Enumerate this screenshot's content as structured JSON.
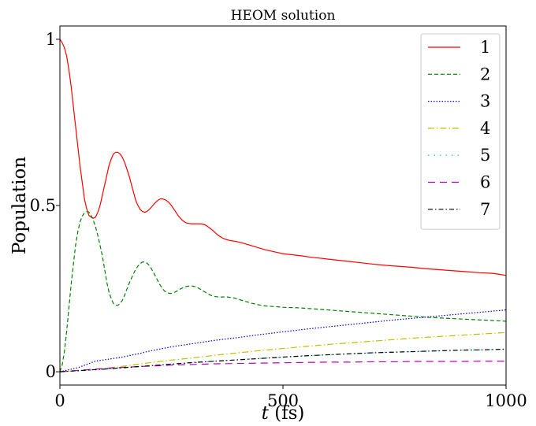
{
  "chart_data": {
    "type": "line",
    "title": "HEOM solution",
    "xlabel_italic": "t",
    "xlabel_rest": " (fs)",
    "ylabel": "Population",
    "xlim": [
      0,
      1000
    ],
    "ylim": [
      -0.04,
      1.04
    ],
    "xticks": [
      0,
      500,
      1000
    ],
    "xtick_labels": [
      "0",
      "500",
      "1000"
    ],
    "yticks": [
      0,
      0.5,
      1
    ],
    "ytick_labels": [
      "0",
      "0.5",
      "1"
    ],
    "grid": false,
    "legend_position": "top-right",
    "series": [
      {
        "name": "1",
        "color": "#ff0000",
        "dash": "",
        "x": [
          0,
          5,
          10,
          15,
          20,
          25,
          30,
          35,
          40,
          45,
          50,
          55,
          60,
          65,
          70,
          75,
          80,
          85,
          90,
          95,
          100,
          105,
          110,
          115,
          120,
          125,
          130,
          135,
          140,
          145,
          150,
          155,
          160,
          165,
          170,
          175,
          180,
          185,
          190,
          195,
          200,
          205,
          210,
          215,
          220,
          225,
          230,
          235,
          240,
          245,
          250,
          255,
          260,
          265,
          270,
          275,
          280,
          285,
          290,
          295,
          300,
          305,
          310,
          315,
          320,
          325,
          330,
          335,
          340,
          345,
          350,
          355,
          360,
          365,
          370,
          375,
          380,
          385,
          390,
          395,
          400,
          410,
          420,
          430,
          440,
          450,
          460,
          470,
          480,
          490,
          500,
          520,
          540,
          560,
          580,
          600,
          620,
          640,
          660,
          680,
          700,
          730,
          760,
          790,
          820,
          850,
          880,
          910,
          940,
          970,
          1000
        ],
        "y": [
          1.0,
          0.99,
          0.975,
          0.95,
          0.91,
          0.86,
          0.8,
          0.74,
          0.68,
          0.62,
          0.57,
          0.52,
          0.49,
          0.47,
          0.465,
          0.462,
          0.465,
          0.48,
          0.5,
          0.53,
          0.56,
          0.59,
          0.62,
          0.64,
          0.655,
          0.66,
          0.66,
          0.655,
          0.645,
          0.63,
          0.61,
          0.59,
          0.565,
          0.54,
          0.515,
          0.5,
          0.488,
          0.482,
          0.48,
          0.482,
          0.488,
          0.495,
          0.503,
          0.51,
          0.516,
          0.52,
          0.52,
          0.518,
          0.514,
          0.508,
          0.5,
          0.49,
          0.48,
          0.47,
          0.462,
          0.455,
          0.45,
          0.447,
          0.446,
          0.445,
          0.445,
          0.445,
          0.445,
          0.445,
          0.444,
          0.442,
          0.438,
          0.433,
          0.428,
          0.422,
          0.416,
          0.41,
          0.406,
          0.402,
          0.399,
          0.397,
          0.395,
          0.394,
          0.393,
          0.392,
          0.39,
          0.387,
          0.383,
          0.379,
          0.375,
          0.371,
          0.367,
          0.364,
          0.361,
          0.358,
          0.355,
          0.352,
          0.349,
          0.345,
          0.342,
          0.339,
          0.336,
          0.333,
          0.33,
          0.327,
          0.324,
          0.32,
          0.317,
          0.314,
          0.31,
          0.307,
          0.304,
          0.301,
          0.298,
          0.296,
          0.29
        ]
      },
      {
        "name": "2",
        "color": "#008000",
        "dash": "5,3",
        "x": [
          0,
          5,
          10,
          15,
          20,
          25,
          30,
          35,
          40,
          45,
          50,
          55,
          60,
          65,
          70,
          75,
          80,
          85,
          90,
          95,
          100,
          105,
          110,
          115,
          120,
          125,
          130,
          135,
          140,
          145,
          150,
          155,
          160,
          165,
          170,
          175,
          180,
          185,
          190,
          195,
          200,
          205,
          210,
          215,
          220,
          225,
          230,
          235,
          240,
          245,
          250,
          255,
          260,
          265,
          270,
          275,
          280,
          285,
          290,
          295,
          300,
          305,
          310,
          315,
          320,
          325,
          330,
          335,
          340,
          345,
          350,
          355,
          360,
          365,
          370,
          375,
          380,
          385,
          390,
          395,
          400,
          410,
          420,
          430,
          440,
          450,
          460,
          470,
          480,
          490,
          500,
          520,
          540,
          560,
          580,
          600,
          620,
          640,
          660,
          680,
          700,
          730,
          760,
          790,
          820,
          850,
          880,
          910,
          940,
          970,
          1000
        ],
        "y": [
          0.0,
          0.02,
          0.06,
          0.12,
          0.19,
          0.26,
          0.32,
          0.38,
          0.42,
          0.45,
          0.468,
          0.478,
          0.482,
          0.48,
          0.47,
          0.455,
          0.435,
          0.41,
          0.38,
          0.35,
          0.31,
          0.27,
          0.24,
          0.22,
          0.205,
          0.2,
          0.2,
          0.205,
          0.215,
          0.23,
          0.248,
          0.265,
          0.28,
          0.295,
          0.308,
          0.318,
          0.325,
          0.33,
          0.33,
          0.327,
          0.32,
          0.31,
          0.298,
          0.285,
          0.272,
          0.26,
          0.25,
          0.242,
          0.238,
          0.236,
          0.236,
          0.238,
          0.241,
          0.245,
          0.249,
          0.252,
          0.255,
          0.257,
          0.258,
          0.258,
          0.257,
          0.255,
          0.252,
          0.248,
          0.244,
          0.24,
          0.236,
          0.232,
          0.229,
          0.227,
          0.226,
          0.225,
          0.225,
          0.225,
          0.225,
          0.225,
          0.224,
          0.223,
          0.222,
          0.22,
          0.218,
          0.214,
          0.21,
          0.206,
          0.203,
          0.2,
          0.198,
          0.197,
          0.196,
          0.195,
          0.194,
          0.193,
          0.192,
          0.19,
          0.188,
          0.186,
          0.184,
          0.182,
          0.18,
          0.178,
          0.176,
          0.173,
          0.17,
          0.167,
          0.164,
          0.162,
          0.16,
          0.158,
          0.156,
          0.154,
          0.152
        ]
      },
      {
        "name": "3",
        "color": "#0000cc",
        "dash": "1.5,2",
        "x": [
          0,
          20,
          40,
          60,
          80,
          100,
          120,
          140,
          160,
          180,
          200,
          250,
          300,
          350,
          400,
          450,
          500,
          550,
          600,
          650,
          700,
          750,
          800,
          850,
          900,
          950,
          1000
        ],
        "y": [
          0.0,
          0.006,
          0.012,
          0.022,
          0.032,
          0.036,
          0.04,
          0.044,
          0.05,
          0.055,
          0.062,
          0.075,
          0.085,
          0.095,
          0.103,
          0.112,
          0.12,
          0.128,
          0.135,
          0.142,
          0.149,
          0.156,
          0.162,
          0.168,
          0.174,
          0.18,
          0.186
        ]
      },
      {
        "name": "4",
        "color": "#bfbf00",
        "dash": "8,3,1.5,3",
        "x": [
          0,
          50,
          100,
          150,
          200,
          250,
          300,
          350,
          400,
          450,
          500,
          550,
          600,
          650,
          700,
          750,
          800,
          850,
          900,
          950,
          1000
        ],
        "y": [
          0.0,
          0.004,
          0.01,
          0.018,
          0.027,
          0.035,
          0.042,
          0.05,
          0.057,
          0.064,
          0.07,
          0.076,
          0.082,
          0.087,
          0.092,
          0.097,
          0.102,
          0.106,
          0.11,
          0.114,
          0.118
        ]
      },
      {
        "name": "5",
        "color": "#00bfbf",
        "dash": "1.5,6",
        "x": [
          0,
          50,
          100,
          150,
          200,
          250,
          300,
          350,
          400,
          450,
          500,
          550,
          600,
          650,
          700,
          750,
          800,
          850,
          900,
          950,
          1000
        ],
        "y": [
          0.0,
          0.003,
          0.007,
          0.012,
          0.017,
          0.022,
          0.027,
          0.032,
          0.036,
          0.04,
          0.044,
          0.048,
          0.051,
          0.054,
          0.057,
          0.059,
          0.061,
          0.063,
          0.065,
          0.066,
          0.068
        ]
      },
      {
        "name": "6",
        "color": "#bf00bf",
        "dash": "9,6",
        "x": [
          0,
          50,
          100,
          150,
          200,
          250,
          300,
          350,
          400,
          450,
          500,
          550,
          600,
          650,
          700,
          750,
          800,
          850,
          900,
          950,
          1000
        ],
        "y": [
          0.0,
          0.005,
          0.01,
          0.014,
          0.017,
          0.02,
          0.022,
          0.024,
          0.025,
          0.026,
          0.027,
          0.028,
          0.029,
          0.029,
          0.03,
          0.03,
          0.031,
          0.031,
          0.031,
          0.032,
          0.032
        ]
      },
      {
        "name": "7",
        "color": "#000000",
        "dash": "6,3,1.5,3",
        "x": [
          0,
          50,
          100,
          150,
          200,
          250,
          300,
          350,
          400,
          450,
          500,
          550,
          600,
          650,
          700,
          750,
          800,
          850,
          900,
          950,
          1000
        ],
        "y": [
          0.0,
          0.004,
          0.008,
          0.013,
          0.018,
          0.023,
          0.028,
          0.032,
          0.036,
          0.04,
          0.044,
          0.048,
          0.051,
          0.054,
          0.057,
          0.059,
          0.061,
          0.063,
          0.065,
          0.066,
          0.068
        ]
      }
    ]
  }
}
